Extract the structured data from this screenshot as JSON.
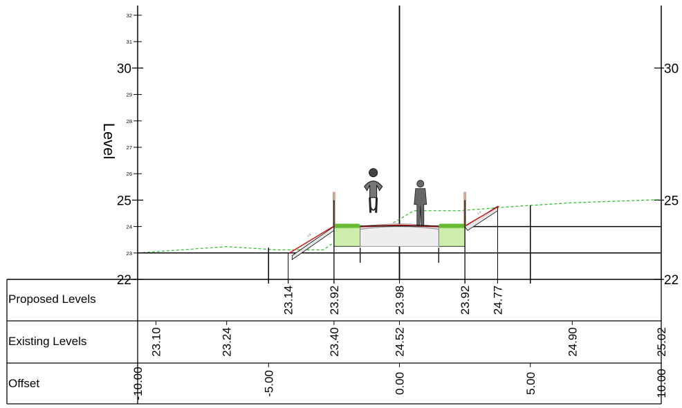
{
  "axis": {
    "label": "Level",
    "ticks_major": [
      22,
      25,
      30
    ],
    "ticks_minor": [
      23,
      24,
      26,
      27,
      28,
      29,
      31,
      32
    ],
    "right_ticks": [
      22,
      25,
      30
    ]
  },
  "rows": {
    "proposed_label": "Proposed Levels",
    "existing_label": "Existing Levels",
    "offset_label": "Offset"
  },
  "proposed_levels": [
    {
      "offset": -4.25,
      "value": "23.14"
    },
    {
      "offset": -2.5,
      "value": "23.92"
    },
    {
      "offset": 0.0,
      "value": "23.98"
    },
    {
      "offset": 2.5,
      "value": "23.92"
    },
    {
      "offset": 3.75,
      "value": "24.77"
    }
  ],
  "existing_levels": [
    {
      "offset": -9.3,
      "value": "23.10"
    },
    {
      "offset": -6.6,
      "value": "23.24"
    },
    {
      "offset": -2.5,
      "value": "23.40"
    },
    {
      "offset": 0.0,
      "value": "24.52"
    },
    {
      "offset": 6.6,
      "value": "24.90"
    },
    {
      "offset": 10.0,
      "value": "25.02"
    }
  ],
  "offsets": [
    {
      "offset": -10.0,
      "value": "-10.00"
    },
    {
      "offset": -5.0,
      "value": "-5.00"
    },
    {
      "offset": 0.0,
      "value": "0.00"
    },
    {
      "offset": 5.0,
      "value": "5.00"
    },
    {
      "offset": 10.0,
      "value": "10.00"
    }
  ],
  "colors": {
    "existing_ground": "#22bb22",
    "grass": "#66bb33",
    "verge_fill": "#cceeaa",
    "path_surface": "#cc2222",
    "bollard": "#d8a890",
    "figure": "#666666"
  }
}
